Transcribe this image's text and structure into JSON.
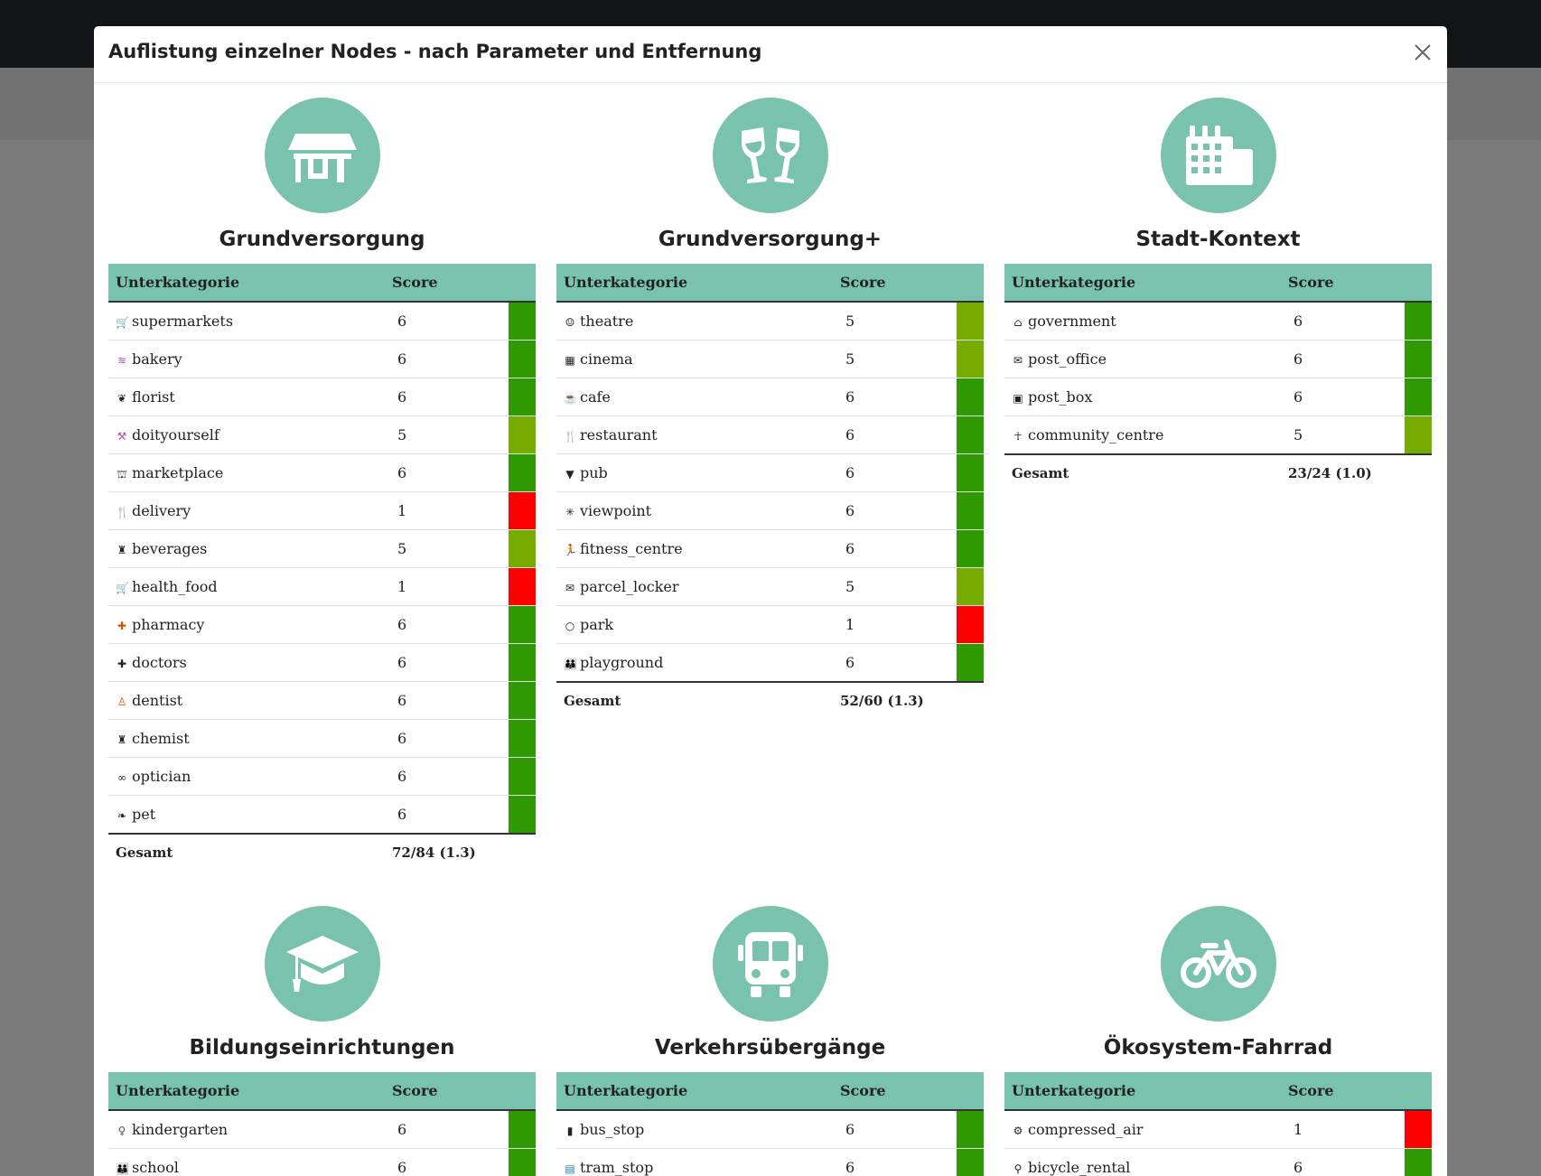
{
  "modal": {
    "title": "Auflistung einzelner Nodes - nach Parameter und Entfernung",
    "close_label": "×"
  },
  "table_headers": {
    "subcategory": "Unterkategorie",
    "score": "Score",
    "total": "Gesamt"
  },
  "colors": {
    "accent": "#79c2ad",
    "score_6": "#2e9900",
    "score_5": "#76ab00",
    "score_1": "#ff0000"
  },
  "categories": [
    {
      "title": "Grundversorgung",
      "icon": "shop-icon",
      "rows": [
        {
          "name": "supermarkets",
          "icon": "cart-icon",
          "score": "6"
        },
        {
          "name": "bakery",
          "icon": "bread-icon",
          "score": "6"
        },
        {
          "name": "florist",
          "icon": "flower-icon",
          "score": "6"
        },
        {
          "name": "doityourself",
          "icon": "tools-icon",
          "score": "5"
        },
        {
          "name": "marketplace",
          "icon": "stall-icon",
          "score": "6"
        },
        {
          "name": "delivery",
          "icon": "cutlery-icon",
          "score": "1"
        },
        {
          "name": "beverages",
          "icon": "bottles-icon",
          "score": "5"
        },
        {
          "name": "health_food",
          "icon": "cart-icon",
          "score": "1"
        },
        {
          "name": "pharmacy",
          "icon": "medicine-icon",
          "score": "6"
        },
        {
          "name": "doctors",
          "icon": "doctor-icon",
          "score": "6"
        },
        {
          "name": "dentist",
          "icon": "tooth-icon",
          "score": "6"
        },
        {
          "name": "chemist",
          "icon": "bottles-icon",
          "score": "6"
        },
        {
          "name": "optician",
          "icon": "glasses-icon",
          "score": "6"
        },
        {
          "name": "pet",
          "icon": "paw-icon",
          "score": "6"
        }
      ],
      "total": "72/84 (1.3)"
    },
    {
      "title": "Grundversorgung+",
      "icon": "glasses-toast-icon",
      "rows": [
        {
          "name": "theatre",
          "icon": "masks-icon",
          "score": "5"
        },
        {
          "name": "cinema",
          "icon": "film-icon",
          "score": "5"
        },
        {
          "name": "cafe",
          "icon": "coffee-icon",
          "score": "6"
        },
        {
          "name": "restaurant",
          "icon": "cutlery-icon",
          "score": "6"
        },
        {
          "name": "pub",
          "icon": "beer-icon",
          "score": "6"
        },
        {
          "name": "viewpoint",
          "icon": "viewpoint-icon",
          "score": "6"
        },
        {
          "name": "fitness_centre",
          "icon": "runner-icon",
          "score": "6"
        },
        {
          "name": "parcel_locker",
          "icon": "envelope-icon",
          "score": "5"
        },
        {
          "name": "park",
          "icon": "circle-icon",
          "score": "1"
        },
        {
          "name": "playground",
          "icon": "children-icon",
          "score": "6"
        }
      ],
      "total": "52/60 (1.3)"
    },
    {
      "title": "Stadt-Kontext",
      "icon": "building-icon",
      "rows": [
        {
          "name": "government",
          "icon": "government-icon",
          "score": "6"
        },
        {
          "name": "post_office",
          "icon": "envelope-icon",
          "score": "6"
        },
        {
          "name": "post_box",
          "icon": "postbox-icon",
          "score": "6"
        },
        {
          "name": "community_centre",
          "icon": "people-icon",
          "score": "5"
        }
      ],
      "total": "23/24 (1.0)"
    },
    {
      "title": "Bildungseinrichtungen",
      "icon": "graduation-cap-icon",
      "rows": [
        {
          "name": "kindergarten",
          "icon": "child-icon",
          "score": "6"
        },
        {
          "name": "school",
          "icon": "children-icon",
          "score": "6"
        }
      ]
    },
    {
      "title": "Verkehrsübergänge",
      "icon": "bus-icon",
      "rows": [
        {
          "name": "bus_stop",
          "icon": "bus-icon",
          "score": "6"
        },
        {
          "name": "tram_stop",
          "icon": "tram-icon",
          "score": "6"
        }
      ]
    },
    {
      "title": "Ökosystem-Fahrrad",
      "icon": "bicycle-icon",
      "rows": [
        {
          "name": "compressed_air",
          "icon": "pump-icon",
          "score": "1"
        },
        {
          "name": "bicycle_rental",
          "icon": "bicycle-icon",
          "score": "6"
        }
      ]
    }
  ]
}
